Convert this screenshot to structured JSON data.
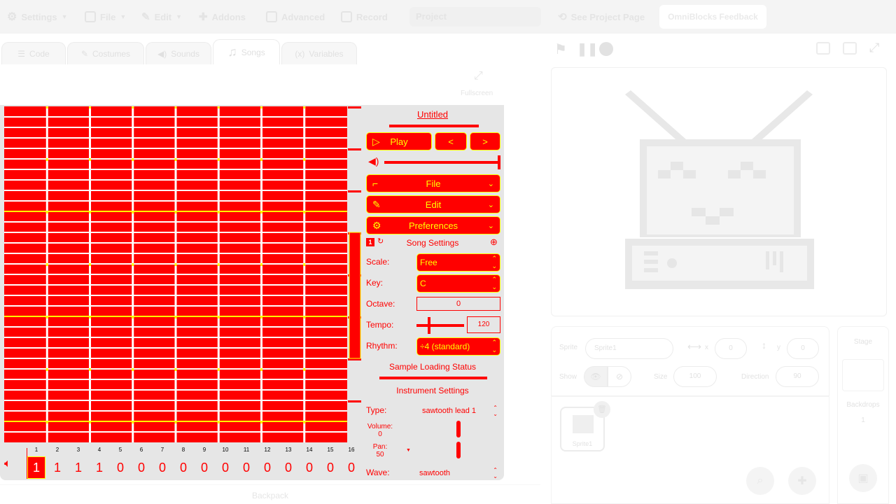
{
  "menubar": {
    "settings": "Settings",
    "file": "File",
    "edit": "Edit",
    "addons": "Addons",
    "advanced": "Advanced",
    "record": "Record",
    "project_placeholder": "Project",
    "see_project_page": "See Project Page",
    "feedback": "OmniBlocks Feedback"
  },
  "tabs": {
    "code": "Code",
    "costumes": "Costumes",
    "sounds": "Sounds",
    "songs": "Songs",
    "variables": "Variables"
  },
  "editor": {
    "fullscreen": "Fullscreen"
  },
  "song": {
    "title": "Untitled",
    "play": "Play",
    "prev": "<",
    "next": ">",
    "file": "File",
    "edit": "Edit",
    "preferences": "Preferences",
    "pattern_number": "1",
    "song_settings": "Song Settings",
    "scale_label": "Scale:",
    "scale_value": "Free",
    "key_label": "Key:",
    "key_value": "C",
    "octave_label": "Octave:",
    "octave_value": "0",
    "tempo_label": "Tempo:",
    "tempo_value": "120",
    "rhythm_label": "Rhythm:",
    "rhythm_value": "÷4 (standard)",
    "sample_status": "Sample Loading Status",
    "instrument_settings": "Instrument Settings",
    "type_label": "Type:",
    "type_value": "sawtooth lead 1",
    "volume_label": "Volume:",
    "volume_value": "0",
    "pan_label": "Pan:",
    "pan_value": "50",
    "wave_label": "Wave:",
    "wave_value": "sawtooth",
    "volume_level": 1.0,
    "tempo_level": 0.25
  },
  "steps": {
    "numbers": [
      "1",
      "2",
      "3",
      "4",
      "5",
      "6",
      "7",
      "8",
      "9",
      "10",
      "11",
      "12",
      "13",
      "14",
      "15",
      "16"
    ],
    "values": [
      "1",
      "1",
      "1",
      "1",
      "0",
      "0",
      "0",
      "0",
      "0",
      "0",
      "0",
      "0",
      "0",
      "0",
      "0",
      "0"
    ],
    "selected_index": 0
  },
  "stage": {
    "sprite_label": "Sprite",
    "sprite_name": "Sprite1",
    "x_label": "x",
    "x_value": "0",
    "y_label": "y",
    "y_value": "0",
    "show_label": "Show",
    "size_label": "Size",
    "size_value": "100",
    "direction_label": "Direction",
    "direction_value": "90",
    "sprite_thumb_label": "Sprite1",
    "stage_label": "Stage",
    "backdrops_label": "Backdrops",
    "backdrops_count": "1"
  },
  "backpack": "Backpack",
  "colors": {
    "grid_cell": "#ff0000",
    "grid_line": "#ffffff",
    "bar_line": "#ffff00",
    "panel_bg": "#e6e6e6"
  }
}
